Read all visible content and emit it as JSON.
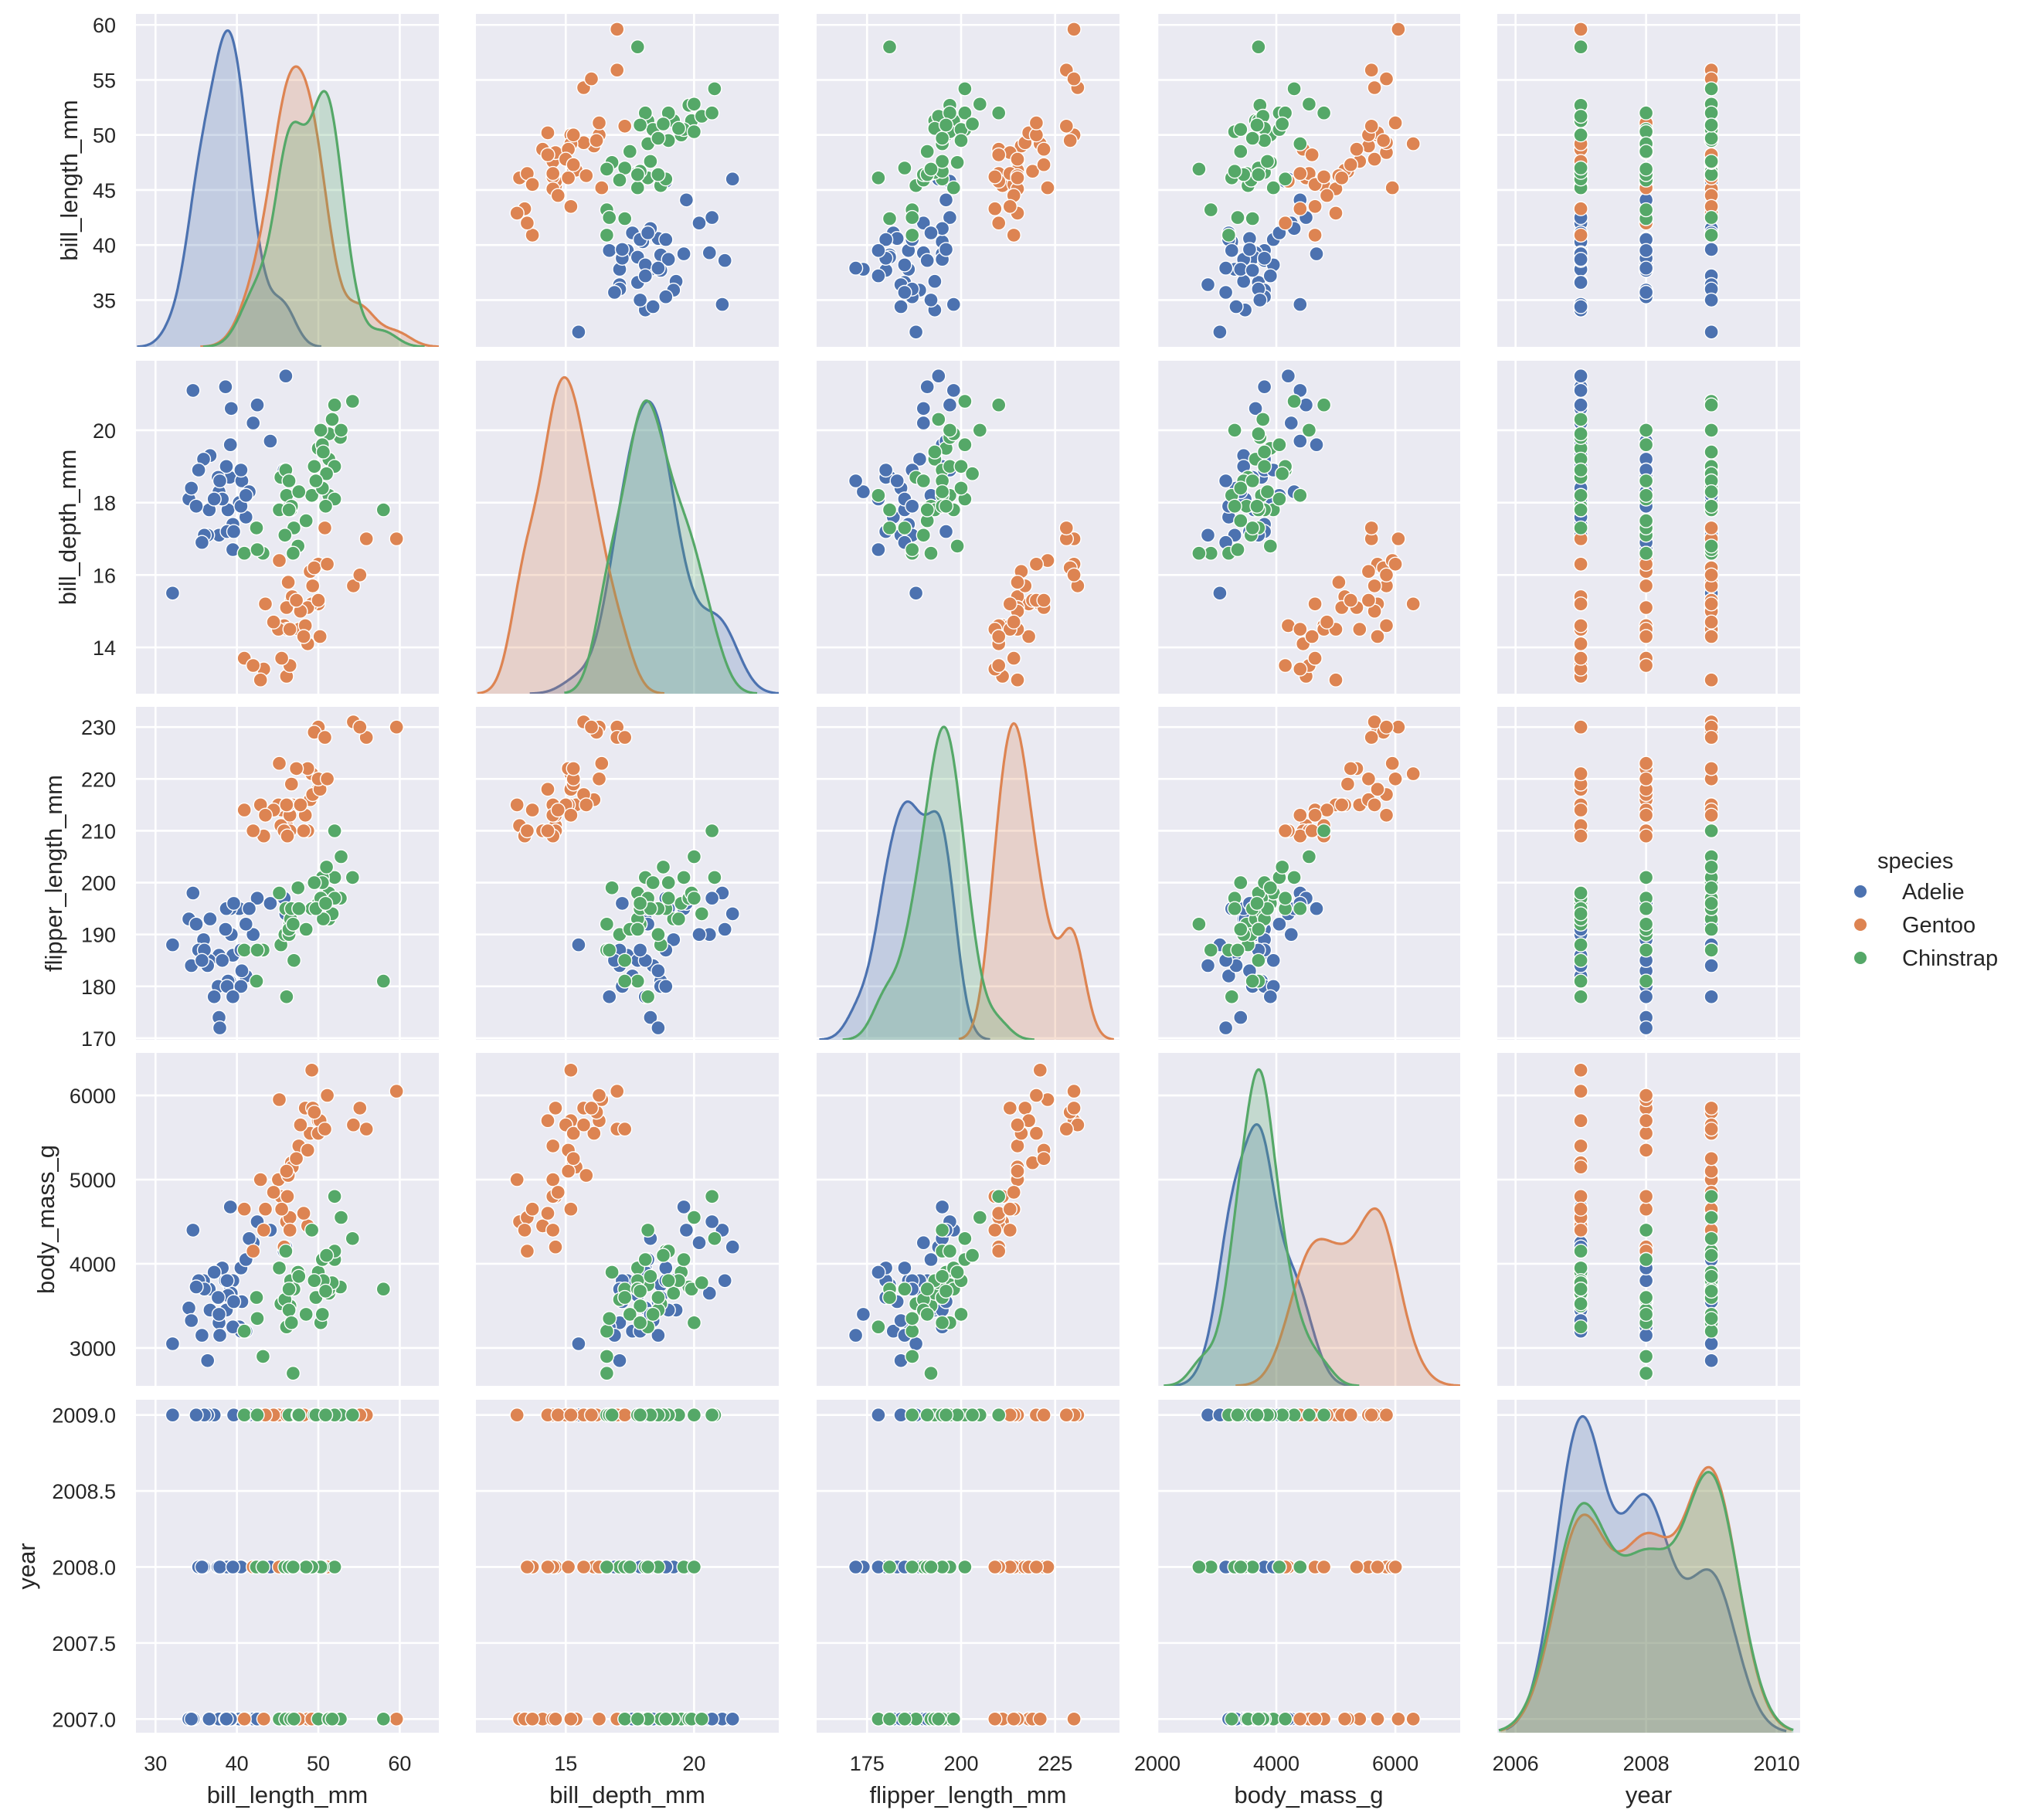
{
  "chart_data": {
    "type": "scatter",
    "title": "",
    "kind": "pairplot",
    "hue_variable": "species",
    "legend": {
      "title": "species",
      "placement": "right"
    },
    "grid": true,
    "columns": [
      "bill_length_mm",
      "bill_depth_mm",
      "flipper_length_mm",
      "body_mass_g",
      "year"
    ],
    "variables": [
      {
        "name": "bill_length_mm",
        "label": "bill_length_mm",
        "range": [
          27.6,
          64.8
        ],
        "ticks": [
          30,
          40,
          50,
          60
        ],
        "tick_labels": [
          "30",
          "40",
          "50",
          "60"
        ],
        "yrange": [
          30.75,
          61.0
        ],
        "yticks": [
          35,
          40,
          45,
          50,
          55,
          60
        ],
        "ytick_labels": [
          "35",
          "40",
          "45",
          "50",
          "55",
          "60"
        ]
      },
      {
        "name": "bill_depth_mm",
        "label": "bill_depth_mm",
        "range": [
          11.5,
          23.3
        ],
        "ticks": [
          15,
          20
        ],
        "tick_labels": [
          "15",
          "20"
        ],
        "yrange": [
          12.72,
          21.92
        ],
        "yticks": [
          14,
          16,
          18,
          20
        ],
        "ytick_labels": [
          "14",
          "16",
          "18",
          "20"
        ]
      },
      {
        "name": "flipper_length_mm",
        "label": "flipper_length_mm",
        "range": [
          161.6,
          242.1
        ],
        "ticks": [
          175,
          200,
          225
        ],
        "tick_labels": [
          "175",
          "200",
          "225"
        ],
        "yrange": [
          169.7,
          233.9
        ],
        "yticks": [
          170,
          180,
          190,
          200,
          210,
          220,
          230
        ],
        "ytick_labels": [
          "170",
          "180",
          "190",
          "200",
          "210",
          "220",
          "230"
        ]
      },
      {
        "name": "body_mass_g",
        "label": "body_mass_g",
        "range": [
          2000,
          7090
        ],
        "ticks": [
          2000,
          4000,
          6000
        ],
        "tick_labels": [
          "2000",
          "4000",
          "6000"
        ],
        "yrange": [
          2550,
          6505
        ],
        "yticks": [
          3000,
          4000,
          5000,
          6000
        ],
        "ytick_labels": [
          "3000",
          "4000",
          "5000",
          "6000"
        ]
      },
      {
        "name": "year",
        "label": "year",
        "range": [
          2005.72,
          2010.36
        ],
        "ticks": [
          2006,
          2008,
          2010
        ],
        "tick_labels": [
          "2006",
          "2008",
          "2010"
        ],
        "yrange": [
          2006.91,
          2009.1
        ],
        "yticks": [
          2007,
          2007.5,
          2008,
          2008.5,
          2009
        ],
        "ytick_labels": [
          "2007.0",
          "2007.5",
          "2008.0",
          "2008.5",
          "2009.0"
        ]
      }
    ],
    "series": [
      {
        "name": "Adelie",
        "color": "#4c72b0",
        "points": [
          [
            39.1,
            18.7,
            181,
            3750,
            2007
          ],
          [
            39.5,
            17.4,
            186,
            3800,
            2007
          ],
          [
            40.3,
            18.0,
            195,
            3250,
            2007
          ],
          [
            36.7,
            19.3,
            193,
            3450,
            2007
          ],
          [
            39.3,
            20.6,
            190,
            3650,
            2007
          ],
          [
            38.9,
            17.8,
            181,
            3625,
            2007
          ],
          [
            39.2,
            19.6,
            195,
            4675,
            2007
          ],
          [
            34.1,
            18.1,
            193,
            3475,
            2007
          ],
          [
            42.0,
            20.2,
            190,
            4250,
            2007
          ],
          [
            37.8,
            17.1,
            186,
            3300,
            2007
          ],
          [
            41.1,
            17.6,
            182,
            3200,
            2007
          ],
          [
            38.6,
            21.2,
            191,
            3800,
            2007
          ],
          [
            34.6,
            21.1,
            198,
            4400,
            2007
          ],
          [
            36.6,
            17.8,
            185,
            3700,
            2007
          ],
          [
            38.7,
            19.0,
            195,
            3450,
            2007
          ],
          [
            42.5,
            20.7,
            197,
            4500,
            2007
          ],
          [
            34.4,
            18.4,
            184,
            3325,
            2007
          ],
          [
            46.0,
            21.5,
            194,
            4200,
            2007
          ],
          [
            37.8,
            18.3,
            174,
            3400,
            2008
          ],
          [
            37.7,
            18.7,
            180,
            3600,
            2008
          ],
          [
            35.9,
            19.2,
            189,
            3800,
            2008
          ],
          [
            38.2,
            18.1,
            185,
            3950,
            2008
          ],
          [
            38.8,
            17.2,
            180,
            3800,
            2008
          ],
          [
            35.3,
            18.9,
            187,
            3800,
            2008
          ],
          [
            40.6,
            18.6,
            183,
            3550,
            2008
          ],
          [
            40.5,
            17.9,
            187,
            3200,
            2008
          ],
          [
            37.9,
            18.6,
            172,
            3150,
            2008
          ],
          [
            40.5,
            18.9,
            180,
            3950,
            2008
          ],
          [
            39.5,
            16.7,
            178,
            3250,
            2008
          ],
          [
            37.2,
            18.1,
            178,
            3900,
            2009
          ],
          [
            39.6,
            17.2,
            196,
            3550,
            2009
          ],
          [
            36.4,
            17.1,
            184,
            2850,
            2009
          ],
          [
            41.5,
            18.3,
            195,
            4300,
            2009
          ],
          [
            32.1,
            15.5,
            188,
            3050,
            2009
          ],
          [
            44.1,
            19.7,
            196,
            4400,
            2008
          ],
          [
            36.0,
            17.1,
            187,
            3700,
            2009
          ],
          [
            41.1,
            18.2,
            192,
            4050,
            2009
          ],
          [
            35.7,
            16.9,
            185,
            3150,
            2008
          ],
          [
            45.8,
            18.9,
            197,
            4150,
            2009
          ],
          [
            35.0,
            17.9,
            192,
            3725,
            2009
          ]
        ]
      },
      {
        "name": "Gentoo",
        "color": "#dd8452",
        "points": [
          [
            46.1,
            13.2,
            211,
            4500,
            2007
          ],
          [
            50.0,
            16.3,
            230,
            5700,
            2007
          ],
          [
            48.7,
            14.1,
            210,
            4450,
            2007
          ],
          [
            50.0,
            15.2,
            218,
            5700,
            2007
          ],
          [
            47.6,
            14.5,
            215,
            5400,
            2007
          ],
          [
            46.5,
            13.5,
            210,
            4550,
            2007
          ],
          [
            45.4,
            14.6,
            211,
            4800,
            2007
          ],
          [
            46.7,
            15.3,
            219,
            5200,
            2007
          ],
          [
            43.3,
            13.4,
            209,
            4400,
            2007
          ],
          [
            46.8,
            15.4,
            215,
            5150,
            2007
          ],
          [
            40.9,
            13.7,
            214,
            4650,
            2007
          ],
          [
            49.0,
            16.1,
            216,
            5550,
            2008
          ],
          [
            45.5,
            13.7,
            214,
            4650,
            2008
          ],
          [
            48.4,
            14.6,
            213,
            5850,
            2008
          ],
          [
            45.8,
            14.6,
            210,
            4200,
            2008
          ],
          [
            49.3,
            15.7,
            217,
            5850,
            2008
          ],
          [
            42.0,
            13.5,
            210,
            4150,
            2008
          ],
          [
            49.2,
            15.2,
            221,
            6300,
            2007
          ],
          [
            46.2,
            14.5,
            209,
            4800,
            2008
          ],
          [
            48.7,
            15.1,
            222,
            5350,
            2008
          ],
          [
            50.2,
            14.3,
            218,
            5700,
            2008
          ],
          [
            45.1,
            14.5,
            215,
            5000,
            2009
          ],
          [
            46.5,
            14.5,
            213,
            4400,
            2009
          ],
          [
            46.3,
            15.8,
            215,
            5050,
            2009
          ],
          [
            42.9,
            13.1,
            215,
            5000,
            2009
          ],
          [
            46.1,
            15.1,
            215,
            5100,
            2009
          ],
          [
            47.8,
            15.0,
            215,
            5650,
            2009
          ],
          [
            48.2,
            14.3,
            210,
            4600,
            2009
          ],
          [
            50.0,
            15.3,
            220,
            5550,
            2009
          ],
          [
            47.3,
            15.3,
            222,
            5250,
            2009
          ],
          [
            59.6,
            17.0,
            230,
            6050,
            2007
          ],
          [
            55.9,
            17.0,
            228,
            5600,
            2009
          ],
          [
            49.5,
            16.2,
            229,
            5800,
            2009
          ],
          [
            54.3,
            15.7,
            231,
            5650,
            2009
          ],
          [
            45.2,
            16.4,
            223,
            5950,
            2008
          ],
          [
            55.1,
            16.0,
            230,
            5850,
            2009
          ],
          [
            51.1,
            16.3,
            220,
            6000,
            2008
          ],
          [
            44.5,
            14.7,
            214,
            4850,
            2009
          ],
          [
            50.8,
            17.3,
            228,
            5600,
            2009
          ],
          [
            43.5,
            15.2,
            213,
            4650,
            2009
          ]
        ]
      },
      {
        "name": "Chinstrap",
        "color": "#55a868",
        "points": [
          [
            46.5,
            17.9,
            192,
            3500,
            2007
          ],
          [
            50.0,
            19.5,
            196,
            3900,
            2007
          ],
          [
            51.3,
            19.2,
            193,
            3650,
            2007
          ],
          [
            45.4,
            18.7,
            188,
            3525,
            2007
          ],
          [
            52.7,
            19.8,
            197,
            3725,
            2007
          ],
          [
            45.2,
            17.8,
            198,
            3950,
            2007
          ],
          [
            46.1,
            18.2,
            178,
            3250,
            2007
          ],
          [
            51.3,
            18.2,
            197,
            3750,
            2007
          ],
          [
            46.0,
            18.9,
            195,
            4150,
            2007
          ],
          [
            51.3,
            19.9,
            198,
            3700,
            2007
          ],
          [
            46.6,
            17.8,
            193,
            3800,
            2007
          ],
          [
            51.7,
            20.3,
            194,
            3775,
            2007
          ],
          [
            47.0,
            17.3,
            185,
            3700,
            2007
          ],
          [
            52.0,
            18.1,
            201,
            4050,
            2008
          ],
          [
            45.9,
            17.1,
            190,
            3575,
            2008
          ],
          [
            50.5,
            19.6,
            201,
            4050,
            2008
          ],
          [
            50.3,
            20.0,
            197,
            3300,
            2008
          ],
          [
            58.0,
            17.8,
            181,
            3700,
            2007
          ],
          [
            46.4,
            18.6,
            190,
            3450,
            2008
          ],
          [
            49.2,
            18.2,
            195,
            4400,
            2008
          ],
          [
            42.4,
            17.3,
            181,
            3600,
            2008
          ],
          [
            48.5,
            17.5,
            191,
            3400,
            2008
          ],
          [
            43.2,
            16.6,
            187,
            2900,
            2008
          ],
          [
            50.6,
            19.4,
            193,
            3800,
            2009
          ],
          [
            46.7,
            17.9,
            195,
            3300,
            2009
          ],
          [
            52.0,
            19.0,
            197,
            4150,
            2009
          ],
          [
            50.5,
            18.4,
            200,
            3400,
            2009
          ],
          [
            49.5,
            19.0,
            200,
            3800,
            2009
          ],
          [
            46.4,
            17.8,
            191,
            3700,
            2009
          ],
          [
            52.8,
            20.0,
            205,
            4550,
            2009
          ],
          [
            40.9,
            16.6,
            187,
            3200,
            2009
          ],
          [
            54.2,
            20.8,
            201,
            4300,
            2009
          ],
          [
            42.5,
            16.7,
            187,
            3350,
            2009
          ],
          [
            51.0,
            18.8,
            203,
            4100,
            2009
          ],
          [
            49.7,
            18.6,
            195,
            3600,
            2009
          ],
          [
            47.5,
            16.8,
            199,
            3900,
            2009
          ],
          [
            47.6,
            18.3,
            195,
            3850,
            2009
          ],
          [
            52.0,
            20.7,
            210,
            4800,
            2009
          ],
          [
            46.9,
            16.6,
            192,
            2700,
            2008
          ],
          [
            50.9,
            17.9,
            196,
            3675,
            2009
          ]
        ]
      }
    ]
  }
}
